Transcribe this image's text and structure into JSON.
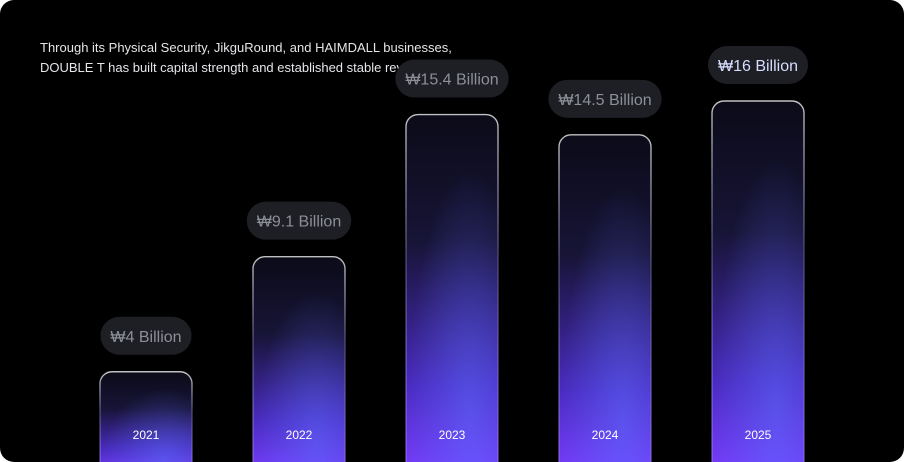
{
  "intro": {
    "line1": "Through its Physical Security, JikguRound, and HAIMDALL businesses,",
    "line2": "DOUBLE T has built capital strength and established stable revenue streams."
  },
  "chart_data": {
    "type": "bar",
    "title": "",
    "xlabel": "",
    "ylabel": "",
    "unit": "₩ Billion",
    "categories": [
      "2021",
      "2022",
      "2023",
      "2024",
      "2025"
    ],
    "values": [
      4,
      9.1,
      15.4,
      14.5,
      16
    ],
    "data_labels": [
      "₩4 Billion",
      "₩9.1 Billion",
      "₩15.4 Billion",
      "₩14.5 Billion",
      "₩16 Billion"
    ],
    "highlighted_category": "2025",
    "grid": false,
    "legend": "none",
    "colors": {
      "bar_top": "#0b0b1a",
      "bar_bottom": "#7b3cff",
      "bar_glow": "#5a4bff",
      "pill_bg": "#1d1f24",
      "pill_text": "#8c8f96",
      "pill_text_highlight": "#d7dcff"
    }
  }
}
